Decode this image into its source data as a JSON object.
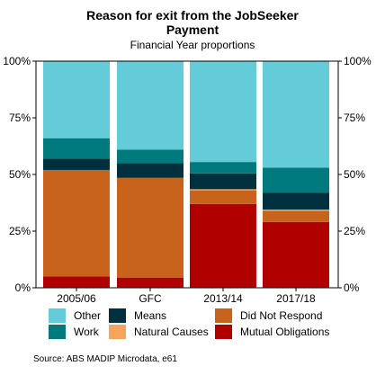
{
  "chart_data": {
    "type": "bar",
    "stacked": true,
    "title_line1": "Reason for exit from the JobSeeker",
    "title_line2": "Payment",
    "subtitle": "Financial Year proportions",
    "categories": [
      "2005/06",
      "GFC",
      "2013/14",
      "2017/18"
    ],
    "ylim": [
      0,
      100
    ],
    "yticks": [
      "0%",
      "25%",
      "50%",
      "75%",
      "100%"
    ],
    "ytick_values": [
      0,
      25,
      50,
      75,
      100
    ],
    "grid": false,
    "legend_position": "bottom",
    "series": [
      {
        "name": "Mutual Obligations",
        "color": "#b00000",
        "values": [
          5,
          4.5,
          37,
          29
        ]
      },
      {
        "name": "Did Not Respond",
        "color": "#c8631b",
        "values": [
          47,
          44,
          6,
          5
        ]
      },
      {
        "name": "Natural Causes",
        "color": "#f5a45b",
        "values": [
          0,
          0,
          0.5,
          0.5
        ]
      },
      {
        "name": "Means",
        "color": "#00303d",
        "values": [
          5,
          6.5,
          7,
          7.5
        ]
      },
      {
        "name": "Work",
        "color": "#007a7c",
        "values": [
          9,
          6,
          5,
          11
        ]
      },
      {
        "name": "Other",
        "color": "#63ccd8",
        "values": [
          34,
          39,
          44.5,
          47
        ]
      }
    ]
  },
  "legend": [
    {
      "label": "Other",
      "color": "#63ccd8"
    },
    {
      "label": "Means",
      "color": "#00303d"
    },
    {
      "label": "Did Not Respond",
      "color": "#c8631b"
    },
    {
      "label": "Work",
      "color": "#007a7c"
    },
    {
      "label": "Natural Causes",
      "color": "#f5a45b"
    },
    {
      "label": "Mutual Obligations",
      "color": "#b00000"
    }
  ],
  "source": "Source: ABS MADIP Microdata, e61"
}
